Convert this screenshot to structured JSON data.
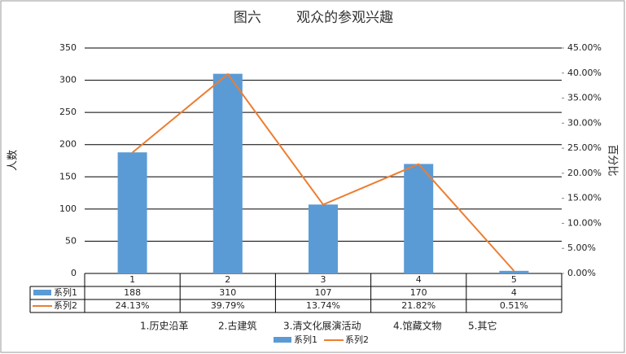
{
  "chart_data": {
    "type": "bar-line-table",
    "title": "图六        观众的参观兴趣",
    "y_label": "人数",
    "y2_label": "百分比",
    "categories": [
      "1",
      "2",
      "3",
      "4",
      "5"
    ],
    "category_notes": [
      "1.历史沿革",
      "2.古建筑",
      "3.清文化展演活动",
      "4.馆藏文物",
      "5.其它"
    ],
    "series": [
      {
        "name": "系列1",
        "type": "bar",
        "color": "#5b9bd5",
        "values": [
          188,
          310,
          107,
          170,
          4
        ]
      },
      {
        "name": "系列2",
        "type": "line",
        "axis": "y2",
        "color": "#ed7d31",
        "values": [
          24.13,
          39.79,
          13.74,
          21.82,
          0.51
        ],
        "value_labels": [
          "24.13%",
          "39.79%",
          "13.74%",
          "21.82%",
          "0.51%"
        ]
      }
    ],
    "ylim": [
      0,
      350
    ],
    "yticks": [
      0,
      50,
      100,
      150,
      200,
      250,
      300,
      350
    ],
    "y2lim": [
      0,
      45
    ],
    "y2ticks": [
      {
        "value": 0,
        "label": "0.00%"
      },
      {
        "value": 5,
        "label": "5.00%"
      },
      {
        "value": 10,
        "label": "10.00%"
      },
      {
        "value": 15,
        "label": "15.00%"
      },
      {
        "value": 20,
        "label": "20.00%"
      },
      {
        "value": 25,
        "label": "25.00%"
      },
      {
        "value": 30,
        "label": "30.00%"
      },
      {
        "value": 35,
        "label": "35.00%"
      },
      {
        "value": 40,
        "label": "40.00%"
      },
      {
        "value": 45,
        "label": "45.00%"
      }
    ],
    "grid": true
  }
}
